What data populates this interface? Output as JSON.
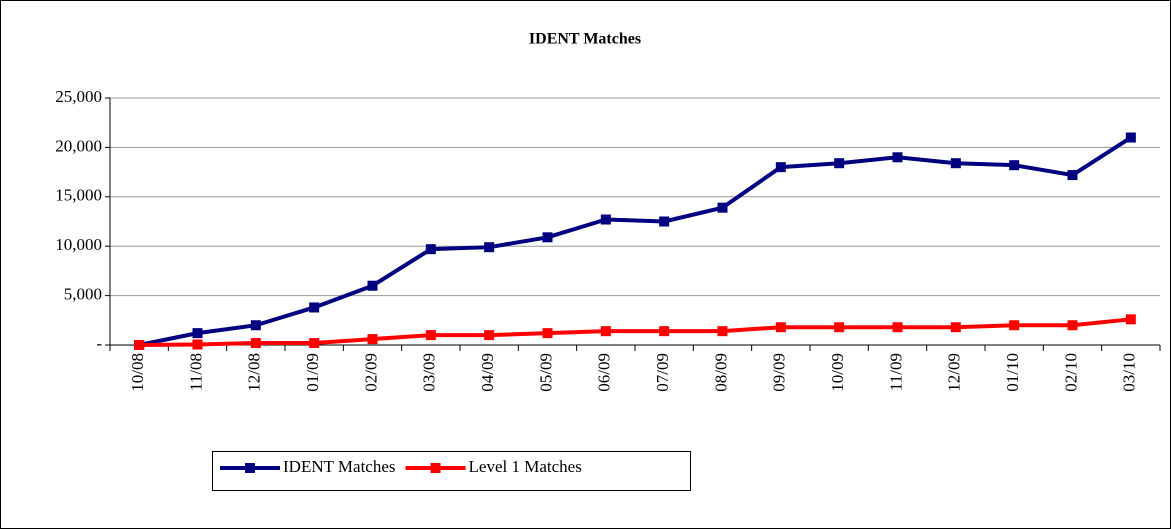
{
  "chart_data": {
    "type": "line",
    "title": "IDENT Matches",
    "categories": [
      "10/08",
      "11/08",
      "12/08",
      "01/09",
      "02/09",
      "03/09",
      "04/09",
      "05/09",
      "06/09",
      "07/09",
      "08/09",
      "09/09",
      "10/09",
      "11/09",
      "12/09",
      "01/10",
      "02/10",
      "03/10"
    ],
    "series": [
      {
        "name": "IDENT Matches",
        "color": "#000080",
        "values": [
          0,
          1200,
          2000,
          3800,
          6000,
          9700,
          9900,
          10900,
          12700,
          12500,
          13900,
          18000,
          18400,
          19000,
          18400,
          18200,
          17200,
          21000
        ]
      },
      {
        "name": "Level 1 Matches",
        "color": "#ff0000",
        "values": [
          0,
          50,
          200,
          200,
          600,
          1000,
          1000,
          1200,
          1400,
          1400,
          1400,
          1800,
          1800,
          1800,
          1800,
          2000,
          2000,
          2600
        ]
      }
    ],
    "ylim": [
      0,
      25000
    ],
    "yticks": [
      {
        "value": 0,
        "label": "-"
      },
      {
        "value": 5000,
        "label": "5,000"
      },
      {
        "value": 10000,
        "label": "10,000"
      },
      {
        "value": 15000,
        "label": "15,000"
      },
      {
        "value": 20000,
        "label": "20,000"
      },
      {
        "value": 25000,
        "label": "25,000"
      }
    ],
    "grid": true,
    "legend": "bottom"
  }
}
